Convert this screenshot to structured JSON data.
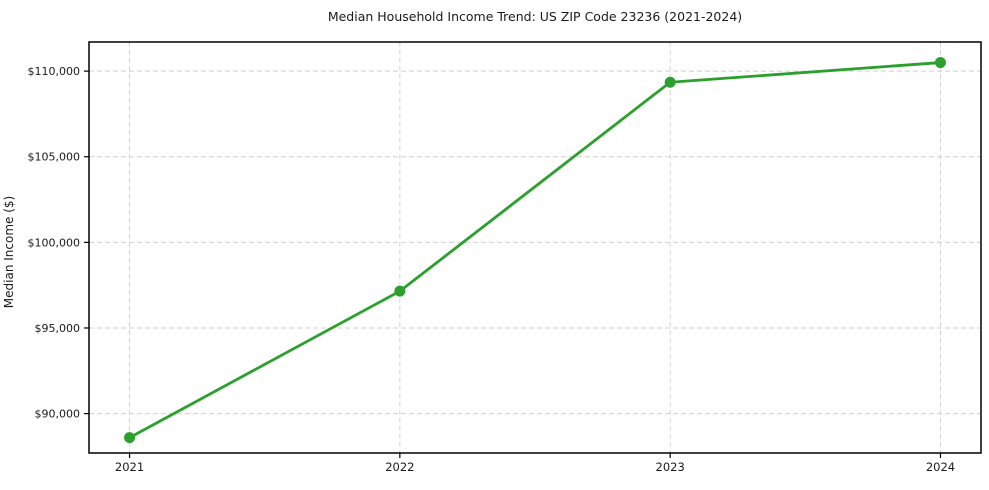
{
  "page": {
    "background": "#ffffff"
  },
  "chart_data": {
    "type": "line",
    "title": "Median Household Income Trend: US ZIP Code 23236 (2021-2024)",
    "xlabel": "",
    "ylabel": "Median Income ($)",
    "categories": [
      "2021",
      "2022",
      "2023",
      "2024"
    ],
    "x": [
      2021,
      2022,
      2023,
      2024
    ],
    "series": [
      {
        "name": "Median household income",
        "values": [
          88600,
          97150,
          109350,
          110500
        ]
      }
    ],
    "yticks": [
      90000,
      95000,
      100000,
      105000,
      110000
    ],
    "ytick_labels": [
      "$90,000",
      "$95,000",
      "$100,000",
      "$105,000",
      "$110,000"
    ],
    "xlim": [
      2020.85,
      2024.15
    ],
    "ylim": [
      87700,
      111700
    ],
    "grid": true,
    "grid_style": "dashed",
    "legend_position": "none",
    "line_color": "#2ca02c",
    "marker": "circle",
    "marker_color": "#2ca02c",
    "axis_color": "#000000",
    "text_color": "#1a1a1a",
    "grid_color": "#d0d0d0"
  }
}
